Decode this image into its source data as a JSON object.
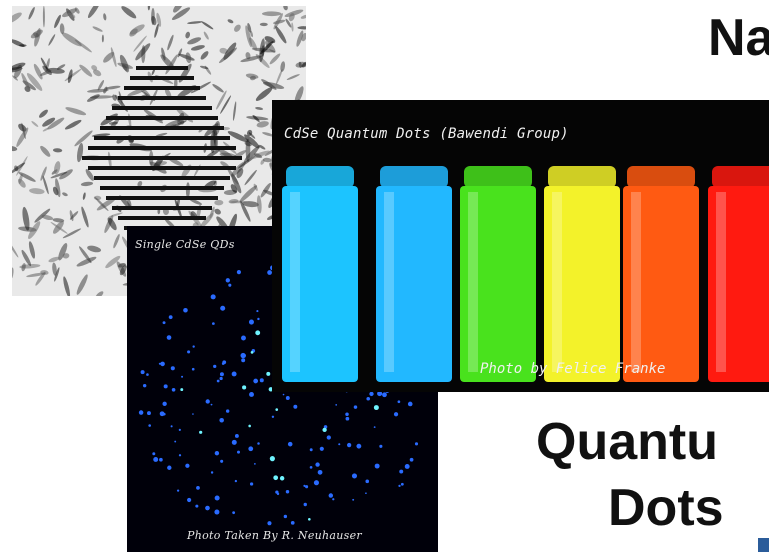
{
  "title_top": "Na",
  "title_bottom_line1": "Quantu",
  "title_bottom_line2": "Dots",
  "tem_image": {
    "description_icon": "lattice-fringes-icon"
  },
  "single_qd_image": {
    "caption_top": "Single CdSe QDs",
    "caption_bottom": "Photo Taken By R. Neuhauser",
    "dot_color": "#2a6bff"
  },
  "vials_image": {
    "caption_top": "CdSe Quantum Dots (Bawendi Group)",
    "caption_bottom": "Photo by Felice Franke",
    "vial_colors": [
      "#1cc4ff",
      "#22b8ff",
      "#49e21d",
      "#f3f22a",
      "#ff5a12",
      "#ff1a10"
    ]
  },
  "accent_color": "#2b5c9a"
}
